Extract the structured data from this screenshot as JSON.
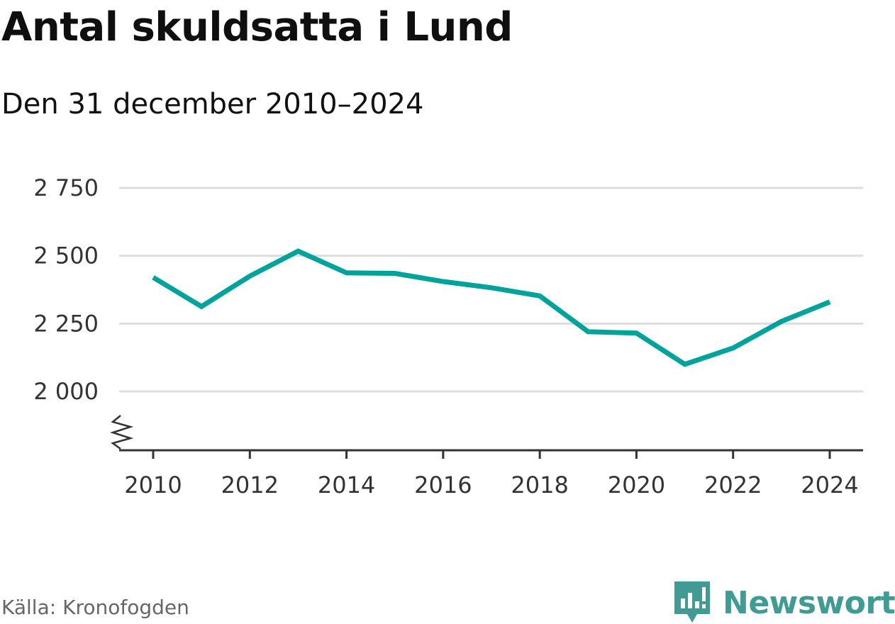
{
  "header": {
    "title": "Antal skuldsatta i Lund",
    "subtitle": "Den 31 december 2010–2024"
  },
  "footer": {
    "source": "Källa: Kronofogden",
    "brand": "Newsworthy"
  },
  "colors": {
    "line": "#00a39b",
    "grid": "#dddddd",
    "axis": "#333333",
    "brand": "#3f9b93"
  },
  "chart_data": {
    "type": "line",
    "title": "Antal skuldsatta i Lund",
    "subtitle": "Den 31 december 2010–2024",
    "x": [
      2010,
      2011,
      2012,
      2013,
      2014,
      2015,
      2016,
      2017,
      2018,
      2019,
      2020,
      2021,
      2022,
      2023,
      2024
    ],
    "series": [
      {
        "values": [
          2420,
          2313,
          2425,
          2517,
          2437,
          2435,
          2405,
          2382,
          2352,
          2220,
          2215,
          2100,
          2160,
          2258,
          2330
        ]
      }
    ],
    "y_ticks": [
      2000,
      2250,
      2500,
      2750
    ],
    "y_tick_labels": [
      "2 000",
      "2 250",
      "2 500",
      "2 750"
    ],
    "x_ticks": [
      2010,
      2012,
      2014,
      2016,
      2018,
      2020,
      2022,
      2024
    ],
    "x_tick_labels": [
      "2010",
      "2012",
      "2014",
      "2016",
      "2018",
      "2020",
      "2022",
      "2024"
    ],
    "ylim": [
      2000,
      2750
    ],
    "xlim": [
      2010,
      2024
    ],
    "y_axis_break": true,
    "grid": true,
    "legend": "none"
  }
}
